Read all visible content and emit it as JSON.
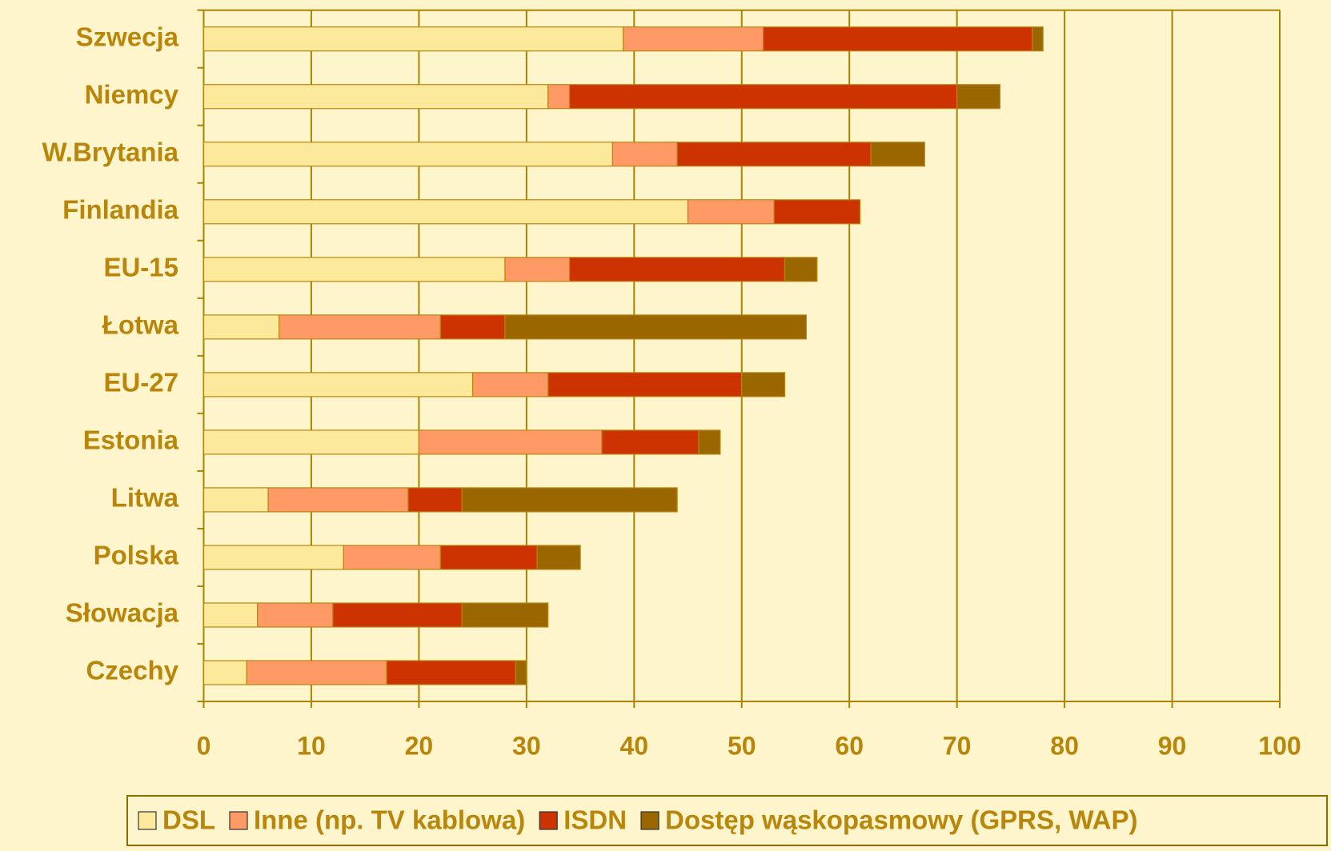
{
  "chart_data": {
    "type": "stacked-barh",
    "categories": [
      "Szwecja",
      "Niemcy",
      "W.Brytania",
      "Finlandia",
      "EU-15",
      "Łotwa",
      "EU-27",
      "Estonia",
      "Litwa",
      "Polska",
      "Słowacja",
      "Czechy"
    ],
    "series": [
      {
        "name": "DSL",
        "color": "#fce99b",
        "values": [
          39,
          32,
          38,
          45,
          28,
          7,
          25,
          20,
          6,
          13,
          5,
          4
        ]
      },
      {
        "name": "Inne (np. TV kablowa)",
        "color": "#ff9966",
        "values": [
          13,
          2,
          6,
          8,
          6,
          15,
          7,
          17,
          13,
          9,
          7,
          13
        ]
      },
      {
        "name": "ISDN",
        "color": "#cc3300",
        "values": [
          25,
          36,
          18,
          8,
          20,
          6,
          18,
          9,
          5,
          9,
          12,
          12
        ]
      },
      {
        "name": "Dostęp wąskopasmowy (GPRS, WAP)",
        "color": "#996600",
        "values": [
          1,
          4,
          5,
          0,
          3,
          28,
          4,
          2,
          20,
          4,
          8,
          1
        ]
      }
    ],
    "xlim": [
      0,
      100
    ],
    "xticks": [
      0,
      10,
      20,
      30,
      40,
      50,
      60,
      70,
      80,
      90,
      100
    ],
    "grid": true,
    "legend": "bottom"
  }
}
